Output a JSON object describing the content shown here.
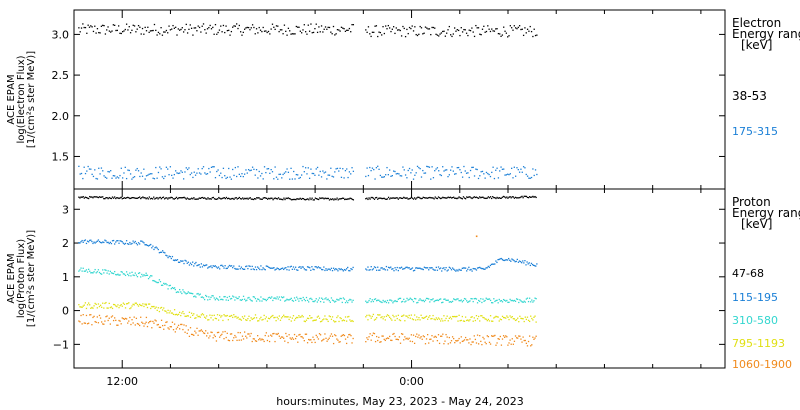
{
  "chart_data": [
    {
      "type": "scatter",
      "panel": "electron",
      "ylabel_lines": [
        "ACE EPAM",
        "log(Electron Flux)",
        "[1/(cm²s ster MeV)]"
      ],
      "legend_title_lines": [
        "Electron",
        "Energy range",
        "[keV]"
      ],
      "ylim": [
        1.1,
        3.3
      ],
      "yticks": [
        1.5,
        2.0,
        2.5,
        3.0
      ],
      "ytick_labels": [
        "1.5",
        "2.0",
        "2.5",
        "3.0"
      ],
      "series": [
        {
          "name": "38-53",
          "color": "#000000",
          "segments": [
            {
              "x_hours": [
                -13.8,
                -2.4
              ],
              "mean": 3.06,
              "spread": 0.07
            },
            {
              "x_hours": [
                -1.9,
                5.2
              ],
              "mean": 3.04,
              "spread": 0.07
            }
          ]
        },
        {
          "name": "175-315",
          "color": "#1a7fd6",
          "segments": [
            {
              "x_hours": [
                -13.8,
                -2.4
              ],
              "mean": 1.3,
              "spread": 0.08
            },
            {
              "x_hours": [
                -1.9,
                5.2
              ],
              "mean": 1.3,
              "spread": 0.08
            }
          ]
        }
      ]
    },
    {
      "type": "scatter",
      "panel": "proton",
      "ylabel_lines": [
        "ACE EPAM",
        "log(Proton Flux)",
        "[1/(cm²s ster MeV)]"
      ],
      "legend_title_lines": [
        "Proton",
        "Energy range",
        "[keV]"
      ],
      "ylim": [
        -1.7,
        3.6
      ],
      "yticks": [
        -1,
        0,
        1,
        2,
        3
      ],
      "ytick_labels": [
        "−1",
        "0",
        "1",
        "2",
        "3"
      ],
      "series": [
        {
          "name": "47-68",
          "color": "#000000",
          "levels": [
            [
              -13.8,
              3.35
            ],
            [
              -2.4,
              3.3
            ],
            [
              -1.9,
              3.32
            ],
            [
              5.2,
              3.36
            ]
          ],
          "spread": 0.03
        },
        {
          "name": "115-195",
          "color": "#1a7fd6",
          "levels": [
            [
              -13.8,
              2.05
            ],
            [
              -11.0,
              2.0
            ],
            [
              -9.8,
              1.5
            ],
            [
              -8.5,
              1.3
            ],
            [
              -2.4,
              1.22
            ],
            [
              -1.9,
              1.25
            ],
            [
              3.0,
              1.22
            ],
            [
              3.8,
              1.55
            ],
            [
              5.2,
              1.35
            ]
          ],
          "spread": 0.06
        },
        {
          "name": "310-580",
          "color": "#33d6cf",
          "levels": [
            [
              -13.8,
              1.2
            ],
            [
              -11.0,
              1.05
            ],
            [
              -9.8,
              0.6
            ],
            [
              -8.5,
              0.38
            ],
            [
              -2.4,
              0.3
            ],
            [
              -1.9,
              0.3
            ],
            [
              5.2,
              0.3
            ]
          ],
          "spread": 0.07
        },
        {
          "name": "795-1193",
          "color": "#e0e014",
          "levels": [
            [
              -13.8,
              0.15
            ],
            [
              -11.0,
              0.15
            ],
            [
              -9.8,
              -0.05
            ],
            [
              -8.5,
              -0.2
            ],
            [
              -2.4,
              -0.25
            ],
            [
              -1.9,
              -0.2
            ],
            [
              5.2,
              -0.25
            ]
          ],
          "spread": 0.09
        },
        {
          "name": "1060-1900",
          "color": "#f08a1c",
          "levels": [
            [
              -13.8,
              -0.25
            ],
            [
              -11.0,
              -0.35
            ],
            [
              -9.8,
              -0.5
            ],
            [
              -8.5,
              -0.75
            ],
            [
              -2.4,
              -0.85
            ],
            [
              -1.9,
              -0.8
            ],
            [
              5.2,
              -0.9
            ]
          ],
          "spread": 0.15
        }
      ],
      "outliers": [
        {
          "x_hours": 2.7,
          "y": 2.2,
          "color": "#f08a1c"
        }
      ]
    }
  ],
  "x_axis": {
    "range_hours": [
      -14.0,
      13.0
    ],
    "major_ticks_hours": [
      -12,
      0
    ],
    "major_tick_labels": [
      "12:00",
      "0:00"
    ],
    "minor_tick_hours": [
      -14,
      -12,
      -10,
      -8,
      -6,
      -4,
      -2,
      0,
      2,
      4,
      6,
      8,
      10,
      12
    ],
    "title": "hours:minutes, May 23, 2023 - May 24, 2023"
  },
  "colors": {
    "axes": "#000000",
    "background": "#ffffff"
  }
}
